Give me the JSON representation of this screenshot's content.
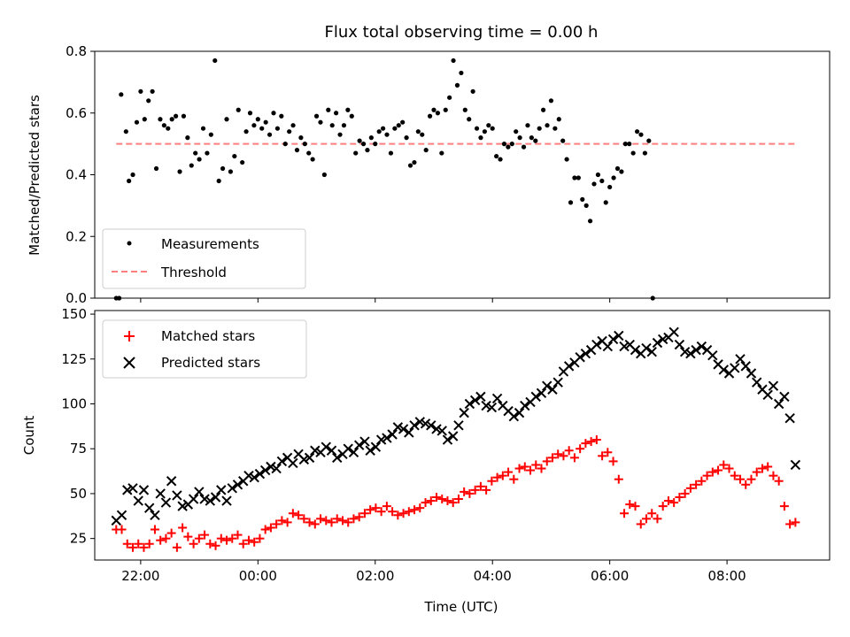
{
  "title": "Flux total observing time = 0.00 h",
  "chart_data": [
    {
      "type": "scatter",
      "ylabel": "Matched/Predicted stars",
      "xlabel": "",
      "xlim": [
        "21:13",
        "09:45"
      ],
      "ylim": [
        0,
        0.8
      ],
      "yticks": [
        "0.0",
        "0.2",
        "0.4",
        "0.6",
        "0.8"
      ],
      "legend": {
        "placement": "lower-left",
        "entries": [
          "Measurements",
          "Threshold"
        ]
      },
      "threshold": {
        "name": "Threshold",
        "value": 0.5,
        "x_range": [
          "21:35",
          "09:10"
        ],
        "color": "#ff7f7f"
      },
      "series": [
        {
          "name": "Measurements",
          "color": "#000000",
          "points": [
            [
              "21:35",
              0.0
            ],
            [
              "21:38",
              0.0
            ],
            [
              "21:40",
              0.66
            ],
            [
              "21:45",
              0.54
            ],
            [
              "21:48",
              0.38
            ],
            [
              "21:52",
              0.4
            ],
            [
              "21:56",
              0.57
            ],
            [
              "22:00",
              0.67
            ],
            [
              "22:04",
              0.58
            ],
            [
              "22:08",
              0.64
            ],
            [
              "22:12",
              0.67
            ],
            [
              "22:16",
              0.42
            ],
            [
              "22:20",
              0.58
            ],
            [
              "22:24",
              0.56
            ],
            [
              "22:28",
              0.55
            ],
            [
              "22:32",
              0.58
            ],
            [
              "22:36",
              0.59
            ],
            [
              "22:40",
              0.41
            ],
            [
              "22:44",
              0.59
            ],
            [
              "22:48",
              0.52
            ],
            [
              "22:52",
              0.43
            ],
            [
              "22:56",
              0.47
            ],
            [
              "23:00",
              0.45
            ],
            [
              "23:04",
              0.55
            ],
            [
              "23:08",
              0.47
            ],
            [
              "23:12",
              0.53
            ],
            [
              "23:16",
              0.77
            ],
            [
              "23:20",
              0.38
            ],
            [
              "23:24",
              0.42
            ],
            [
              "23:28",
              0.58
            ],
            [
              "23:32",
              0.41
            ],
            [
              "23:36",
              0.46
            ],
            [
              "23:40",
              0.61
            ],
            [
              "23:44",
              0.44
            ],
            [
              "23:48",
              0.54
            ],
            [
              "23:52",
              0.6
            ],
            [
              "23:56",
              0.56
            ],
            [
              "00:00",
              0.58
            ],
            [
              "00:04",
              0.55
            ],
            [
              "00:08",
              0.57
            ],
            [
              "00:12",
              0.53
            ],
            [
              "00:16",
              0.6
            ],
            [
              "00:20",
              0.55
            ],
            [
              "00:24",
              0.59
            ],
            [
              "00:28",
              0.5
            ],
            [
              "00:32",
              0.54
            ],
            [
              "00:36",
              0.56
            ],
            [
              "00:40",
              0.48
            ],
            [
              "00:44",
              0.52
            ],
            [
              "00:48",
              0.5
            ],
            [
              "00:52",
              0.47
            ],
            [
              "00:56",
              0.45
            ],
            [
              "01:00",
              0.59
            ],
            [
              "01:04",
              0.57
            ],
            [
              "01:08",
              0.4
            ],
            [
              "01:12",
              0.61
            ],
            [
              "01:16",
              0.56
            ],
            [
              "01:20",
              0.6
            ],
            [
              "01:24",
              0.53
            ],
            [
              "01:28",
              0.56
            ],
            [
              "01:32",
              0.61
            ],
            [
              "01:36",
              0.59
            ],
            [
              "01:40",
              0.47
            ],
            [
              "01:44",
              0.51
            ],
            [
              "01:48",
              0.5
            ],
            [
              "01:52",
              0.48
            ],
            [
              "01:56",
              0.52
            ],
            [
              "02:00",
              0.5
            ],
            [
              "02:04",
              0.54
            ],
            [
              "02:08",
              0.55
            ],
            [
              "02:12",
              0.53
            ],
            [
              "02:16",
              0.47
            ],
            [
              "02:20",
              0.55
            ],
            [
              "02:24",
              0.56
            ],
            [
              "02:28",
              0.57
            ],
            [
              "02:32",
              0.52
            ],
            [
              "02:36",
              0.43
            ],
            [
              "02:40",
              0.44
            ],
            [
              "02:44",
              0.54
            ],
            [
              "02:48",
              0.53
            ],
            [
              "02:52",
              0.48
            ],
            [
              "02:56",
              0.59
            ],
            [
              "03:00",
              0.61
            ],
            [
              "03:04",
              0.6
            ],
            [
              "03:08",
              0.47
            ],
            [
              "03:12",
              0.61
            ],
            [
              "03:16",
              0.65
            ],
            [
              "03:20",
              0.77
            ],
            [
              "03:24",
              0.69
            ],
            [
              "03:28",
              0.73
            ],
            [
              "03:32",
              0.61
            ],
            [
              "03:36",
              0.58
            ],
            [
              "03:40",
              0.67
            ],
            [
              "03:44",
              0.55
            ],
            [
              "03:48",
              0.52
            ],
            [
              "03:52",
              0.54
            ],
            [
              "03:56",
              0.56
            ],
            [
              "04:00",
              0.55
            ],
            [
              "04:04",
              0.46
            ],
            [
              "04:08",
              0.45
            ],
            [
              "04:12",
              0.5
            ],
            [
              "04:16",
              0.49
            ],
            [
              "04:20",
              0.5
            ],
            [
              "04:24",
              0.54
            ],
            [
              "04:28",
              0.52
            ],
            [
              "04:32",
              0.49
            ],
            [
              "04:36",
              0.56
            ],
            [
              "04:40",
              0.52
            ],
            [
              "04:44",
              0.51
            ],
            [
              "04:48",
              0.55
            ],
            [
              "04:52",
              0.61
            ],
            [
              "04:56",
              0.56
            ],
            [
              "05:00",
              0.64
            ],
            [
              "05:04",
              0.55
            ],
            [
              "05:08",
              0.58
            ],
            [
              "05:12",
              0.51
            ],
            [
              "05:16",
              0.45
            ],
            [
              "05:20",
              0.31
            ],
            [
              "05:24",
              0.39
            ],
            [
              "05:28",
              0.39
            ],
            [
              "05:32",
              0.32
            ],
            [
              "05:36",
              0.3
            ],
            [
              "05:40",
              0.25
            ],
            [
              "05:44",
              0.37
            ],
            [
              "05:48",
              0.4
            ],
            [
              "05:52",
              0.38
            ],
            [
              "05:56",
              0.31
            ],
            [
              "06:00",
              0.36
            ],
            [
              "06:04",
              0.39
            ],
            [
              "06:08",
              0.42
            ],
            [
              "06:12",
              0.41
            ],
            [
              "06:16",
              0.5
            ],
            [
              "06:20",
              0.5
            ],
            [
              "06:24",
              0.47
            ],
            [
              "06:28",
              0.54
            ],
            [
              "06:32",
              0.53
            ],
            [
              "06:36",
              0.47
            ],
            [
              "06:40",
              0.51
            ],
            [
              "06:44",
              0.0
            ]
          ]
        }
      ]
    },
    {
      "type": "scatter",
      "ylabel": "Count",
      "xlabel": "Time (UTC)",
      "xlim": [
        "21:13",
        "09:45"
      ],
      "ylim": [
        13,
        152
      ],
      "yticks": [
        "25",
        "50",
        "75",
        "100",
        "125",
        "150"
      ],
      "xticks": [
        "22:00",
        "00:00",
        "02:00",
        "04:00",
        "06:00",
        "08:00"
      ],
      "legend": {
        "placement": "upper-left",
        "entries": [
          "Matched stars",
          "Predicted stars"
        ]
      },
      "series": [
        {
          "name": "Matched stars",
          "marker": "+",
          "color": "#ff0000",
          "values": [
            30,
            30,
            22,
            20,
            22,
            20,
            22,
            30,
            24,
            25,
            28,
            20,
            31,
            26,
            22,
            25,
            27,
            22,
            21,
            25,
            24,
            25,
            27,
            22,
            24,
            23,
            25,
            30,
            31,
            33,
            35,
            34,
            39,
            38,
            36,
            34,
            33,
            36,
            35,
            34,
            36,
            35,
            34,
            36,
            37,
            39,
            41,
            42,
            40,
            43,
            40,
            38,
            39,
            40,
            41,
            42,
            45,
            46,
            48,
            47,
            46,
            45,
            47,
            51,
            50,
            52,
            54,
            52,
            57,
            59,
            60,
            62,
            58,
            64,
            65,
            63,
            66,
            64,
            68,
            70,
            72,
            71,
            74,
            70,
            75,
            78,
            79,
            80,
            71,
            73,
            68,
            58,
            39,
            44,
            43,
            33,
            36,
            39,
            36,
            43,
            46,
            45,
            48,
            50,
            53,
            55,
            57,
            60,
            62,
            63,
            66,
            64,
            60,
            58,
            55,
            58,
            62,
            64,
            65,
            60,
            57,
            43,
            33,
            34
          ],
          "x_range": [
            "21:35",
            "09:10"
          ]
        },
        {
          "name": "Predicted stars",
          "marker": "x",
          "color": "#000000",
          "values": [
            35,
            38,
            52,
            53,
            46,
            52,
            42,
            38,
            50,
            45,
            57,
            49,
            43,
            44,
            47,
            51,
            47,
            46,
            48,
            52,
            46,
            53,
            55,
            57,
            60,
            59,
            61,
            63,
            65,
            64,
            68,
            70,
            67,
            72,
            69,
            70,
            74,
            73,
            76,
            74,
            70,
            72,
            75,
            73,
            77,
            79,
            74,
            76,
            80,
            81,
            83,
            87,
            86,
            84,
            88,
            90,
            89,
            88,
            86,
            85,
            80,
            82,
            88,
            95,
            100,
            102,
            104,
            99,
            98,
            103,
            99,
            96,
            93,
            95,
            99,
            101,
            104,
            106,
            110,
            108,
            112,
            118,
            121,
            123,
            126,
            128,
            130,
            133,
            135,
            132,
            136,
            138,
            132,
            133,
            130,
            128,
            131,
            129,
            134,
            136,
            137,
            140,
            133,
            129,
            128,
            130,
            132,
            130,
            127,
            122,
            119,
            117,
            120,
            125,
            121,
            117,
            112,
            108,
            105,
            110,
            100,
            104,
            92,
            66
          ],
          "x_range": [
            "21:35",
            "09:10"
          ]
        }
      ]
    }
  ]
}
